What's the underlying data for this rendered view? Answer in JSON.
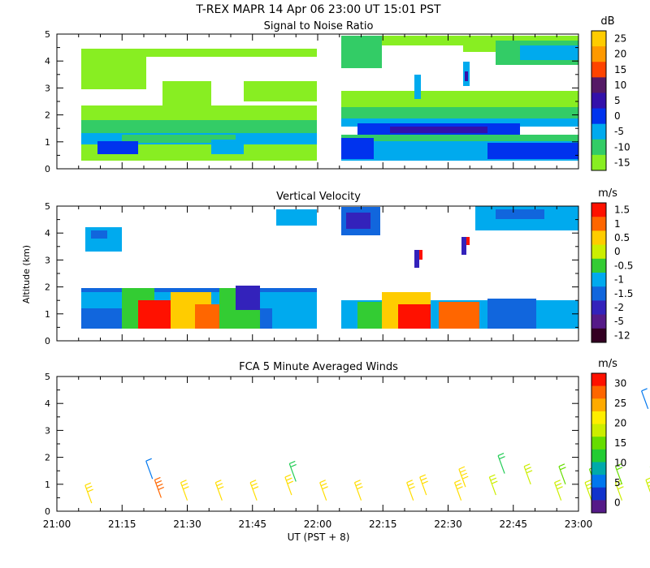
{
  "header": {
    "title": "T-REX   MAPR 14 Apr 06   23:00 UT   15:01   PST"
  },
  "ylabel": "Altitude (km)",
  "xlabel": "UT  (PST + 8)",
  "chart_data": [
    {
      "type": "heatmap",
      "title": "Signal to Noise Ratio",
      "units": "dB",
      "xlim_min": [
        1260,
        1380
      ],
      "xticks": [
        "21:00",
        "21:15",
        "21:30",
        "21:45",
        "22:00",
        "22:15",
        "22:30",
        "22:45",
        "23:00"
      ],
      "ylim": [
        0,
        5
      ],
      "yticks": [
        "0",
        "1",
        "2",
        "3",
        "4",
        "5"
      ],
      "colorbar": {
        "labels": [
          "25",
          "20",
          "15",
          "10",
          "5",
          "0",
          "-5",
          "-10",
          "-15"
        ],
        "colors": [
          "#ffcc00",
          "#ff9900",
          "#ff4400",
          "#551a66",
          "#3311aa",
          "#0033ee",
          "#00aaee",
          "#33cc66",
          "#88ee22"
        ]
      }
    },
    {
      "type": "heatmap",
      "title": "Vertical Velocity",
      "units": "m/s",
      "xlim_min": [
        1260,
        1380
      ],
      "ylim": [
        0,
        5
      ],
      "yticks": [
        "0",
        "1",
        "2",
        "3",
        "4",
        "5"
      ],
      "colorbar": {
        "labels": [
          "1.5",
          "1",
          "0.5",
          "0",
          "-0.5",
          "-1",
          "-1.5",
          "-2",
          "-5",
          "-12"
        ],
        "colors": [
          "#ff1100",
          "#ff6600",
          "#ffcc00",
          "#ccee00",
          "#33cc33",
          "#00aaee",
          "#1166dd",
          "#3322bb",
          "#551a88",
          "#330022"
        ]
      }
    },
    {
      "type": "scatter",
      "title": "FCA 5 Minute Averaged Winds",
      "units": "m/s",
      "xlim_min": [
        1260,
        1380
      ],
      "ylim": [
        0,
        5
      ],
      "yticks": [
        "0",
        "1",
        "2",
        "3",
        "4",
        "5"
      ],
      "colorbar": {
        "labels": [
          "30",
          "25",
          "20",
          "15",
          "10",
          "5",
          "0"
        ],
        "colors": [
          "#ff1100",
          "#ff6600",
          "#ffaa00",
          "#ffee00",
          "#ccee00",
          "#66dd00",
          "#22cc33",
          "#00aaaa",
          "#0077ee",
          "#1133cc",
          "#551a88"
        ]
      },
      "barbs": [
        {
          "t": 1268,
          "alt": 0.3,
          "speed": 20
        },
        {
          "t": 1282,
          "alt": 1.2,
          "speed": 8
        },
        {
          "t": 1284,
          "alt": 0.5,
          "speed": 26
        },
        {
          "t": 1290,
          "alt": 0.4,
          "speed": 20
        },
        {
          "t": 1298,
          "alt": 0.4,
          "speed": 20
        },
        {
          "t": 1306,
          "alt": 0.4,
          "speed": 20
        },
        {
          "t": 1314,
          "alt": 0.6,
          "speed": 20
        },
        {
          "t": 1315,
          "alt": 1.1,
          "speed": 10
        },
        {
          "t": 1322,
          "alt": 0.4,
          "speed": 20
        },
        {
          "t": 1330,
          "alt": 0.4,
          "speed": 20
        },
        {
          "t": 1342,
          "alt": 0.4,
          "speed": 20
        },
        {
          "t": 1345,
          "alt": 0.6,
          "speed": 20
        },
        {
          "t": 1353,
          "alt": 0.4,
          "speed": 20
        },
        {
          "t": 1354,
          "alt": 0.9,
          "speed": 22
        },
        {
          "t": 1361,
          "alt": 0.6,
          "speed": 18
        },
        {
          "t": 1363,
          "alt": 1.4,
          "speed": 10
        },
        {
          "t": 1369,
          "alt": 1.0,
          "speed": 15
        },
        {
          "t": 1376,
          "alt": 0.4,
          "speed": 15
        },
        {
          "t": 1377,
          "alt": 1.0,
          "speed": 13
        },
        {
          "t": 1383,
          "alt": 0.4,
          "speed": 15
        },
        {
          "t": 1384,
          "alt": 0.9,
          "speed": 14
        },
        {
          "t": 1390,
          "alt": 0.4,
          "speed": 15
        },
        {
          "t": 1390,
          "alt": 1.0,
          "speed": 13
        },
        {
          "t": 1397,
          "alt": 0.5,
          "speed": 15
        },
        {
          "t": 1398,
          "alt": 1.0,
          "speed": 13
        },
        {
          "t": 1396,
          "alt": 3.8,
          "speed": 8
        }
      ]
    }
  ]
}
